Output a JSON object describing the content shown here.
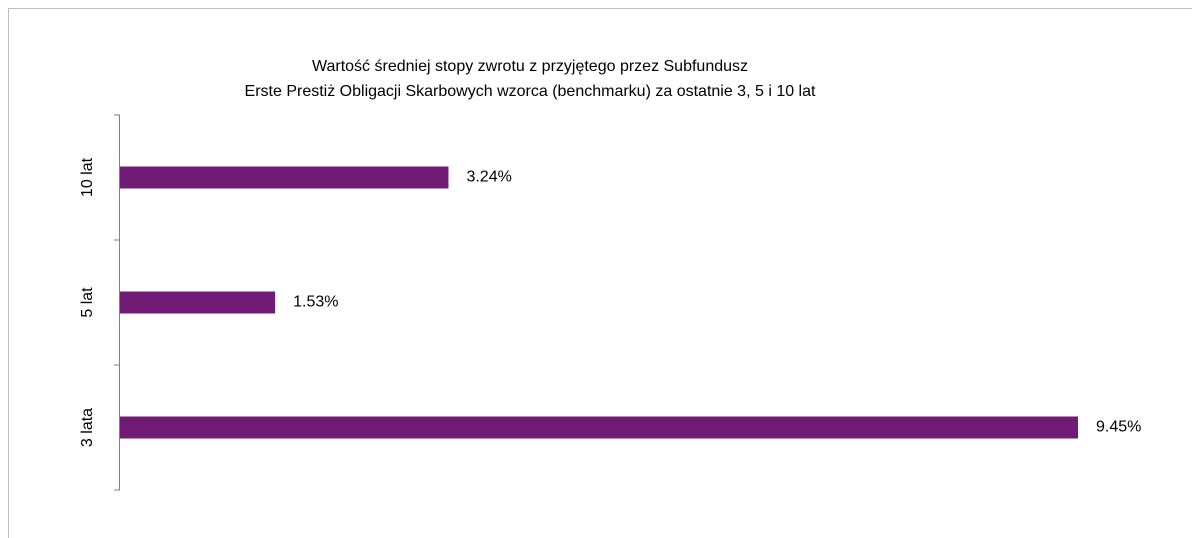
{
  "chart_data": {
    "type": "barh",
    "title": [
      "Wartość średniej stopy zwrotu z przyjętego przez Subfundusz",
      "Erste Prestiż Obligacji Skarbowych wzorca (benchmarku) za ostatnie 3, 5 i 10 lat"
    ],
    "categories": [
      "3 lata",
      "5 lat",
      "10 lat"
    ],
    "values": [
      9.45,
      1.53,
      3.24
    ],
    "value_labels": [
      "9.45%",
      "1.53%",
      "3.24%"
    ],
    "color": "#701b76"
  }
}
